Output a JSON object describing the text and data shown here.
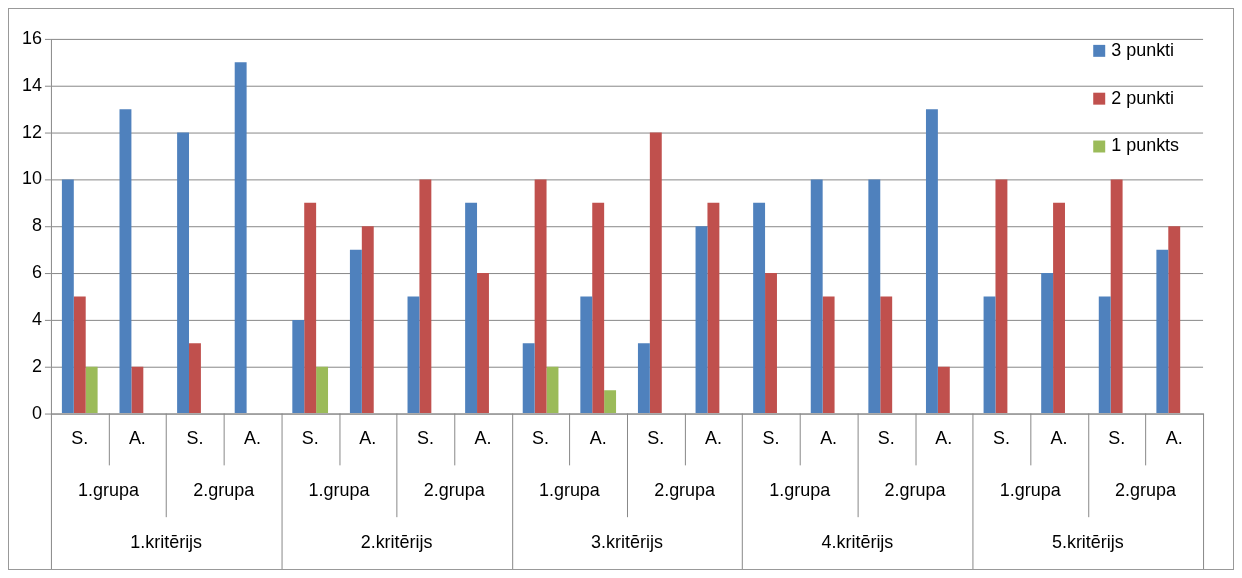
{
  "chart_data": {
    "type": "bar",
    "categories": [
      "S.",
      "A.",
      "S.",
      "A.",
      "S.",
      "A.",
      "S.",
      "A.",
      "S.",
      "A.",
      "S.",
      "A.",
      "S.",
      "A.",
      "S.",
      "A.",
      "S.",
      "A.",
      "S.",
      "A."
    ],
    "series": [
      {
        "name": "3 punkti",
        "color": "#4f81bd",
        "values": [
          10,
          13,
          12,
          15,
          4,
          7,
          5,
          9,
          3,
          5,
          3,
          8,
          9,
          10,
          10,
          13,
          5,
          6,
          5,
          7
        ]
      },
      {
        "name": "2 punkti",
        "color": "#c0504d",
        "values": [
          5,
          2,
          3,
          null,
          9,
          8,
          10,
          6,
          10,
          9,
          12,
          9,
          6,
          5,
          5,
          2,
          10,
          9,
          10,
          8
        ]
      },
      {
        "name": "1 punkts",
        "color": "#9bbb59",
        "values": [
          2,
          null,
          null,
          null,
          2,
          null,
          null,
          null,
          2,
          1,
          null,
          null,
          null,
          null,
          null,
          null,
          null,
          null,
          null,
          null
        ]
      }
    ],
    "annotations": [
      "1.grupa",
      "2.grupa",
      "1.grupa",
      "2.grupa",
      "1.grupa",
      "2.grupa",
      "1.grupa",
      "2.grupa",
      "1.grupa",
      "2.grupa",
      "1.kritērijs",
      "2.kritērijs",
      "3.kritērijs",
      "4.kritērijs",
      "5.kritērijs"
    ],
    "ylim": [
      0,
      16
    ],
    "yticks": [
      0,
      2,
      4,
      6,
      8,
      10,
      12,
      14,
      16
    ],
    "grid": "y",
    "legend": "top right"
  }
}
